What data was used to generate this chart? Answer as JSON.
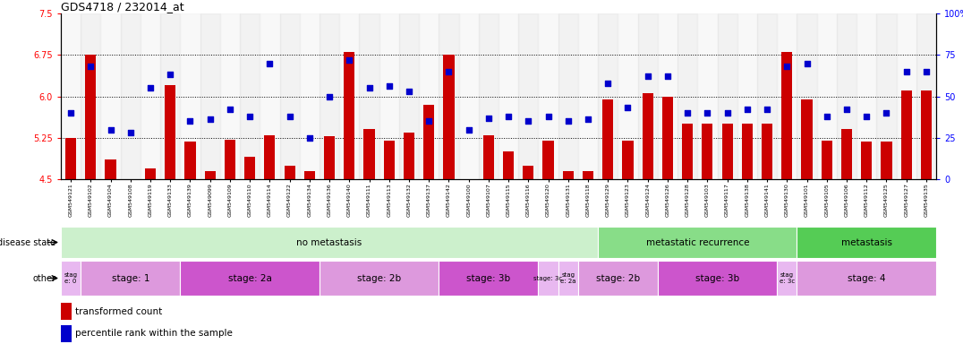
{
  "title": "GDS4718 / 232014_at",
  "samples": [
    "GSM549121",
    "GSM549102",
    "GSM549104",
    "GSM549108",
    "GSM549119",
    "GSM549133",
    "GSM549139",
    "GSM549099",
    "GSM549109",
    "GSM549110",
    "GSM549114",
    "GSM549122",
    "GSM549134",
    "GSM549136",
    "GSM549140",
    "GSM549111",
    "GSM549113",
    "GSM549132",
    "GSM549137",
    "GSM549142",
    "GSM549100",
    "GSM549107",
    "GSM549115",
    "GSM549116",
    "GSM549120",
    "GSM549131",
    "GSM549118",
    "GSM549129",
    "GSM549123",
    "GSM549124",
    "GSM549126",
    "GSM549128",
    "GSM549103",
    "GSM549117",
    "GSM549138",
    "GSM549141",
    "GSM549130",
    "GSM549101",
    "GSM549105",
    "GSM549106",
    "GSM549112",
    "GSM549125",
    "GSM549127",
    "GSM549135"
  ],
  "bar_values": [
    5.25,
    6.75,
    4.85,
    4.5,
    4.7,
    6.2,
    5.18,
    4.65,
    5.22,
    4.9,
    5.3,
    4.75,
    4.65,
    5.28,
    6.8,
    5.4,
    5.2,
    5.35,
    5.85,
    6.75,
    4.5,
    5.3,
    5.0,
    4.75,
    5.2,
    4.65,
    4.65,
    5.95,
    5.2,
    6.05,
    6.0,
    5.5,
    5.5,
    5.5,
    5.5,
    5.5,
    6.8,
    5.95,
    5.2,
    5.4,
    5.18,
    5.18,
    6.1,
    6.1
  ],
  "percentile_values": [
    40,
    68,
    30,
    28,
    55,
    63,
    35,
    36,
    42,
    38,
    70,
    38,
    25,
    50,
    72,
    55,
    56,
    53,
    35,
    65,
    30,
    37,
    38,
    35,
    38,
    35,
    36,
    58,
    43,
    62,
    62,
    40,
    40,
    40,
    42,
    42,
    68,
    70,
    38,
    42,
    38,
    40,
    65,
    65
  ],
  "ylim_left": [
    4.5,
    7.5
  ],
  "ylim_right": [
    0,
    100
  ],
  "yticks_left": [
    4.5,
    5.25,
    6.0,
    6.75,
    7.5
  ],
  "yticks_right": [
    0,
    25,
    50,
    75,
    100
  ],
  "hlines": [
    5.25,
    6.0,
    6.75
  ],
  "bar_color": "#cc0000",
  "dot_color": "#0000cc",
  "bar_bottom": 4.5,
  "ds_groups": [
    {
      "label": "no metastasis",
      "start": 0,
      "end": 27,
      "color": "#ccf0cc"
    },
    {
      "label": "metastatic recurrence",
      "start": 27,
      "end": 37,
      "color": "#88dd88"
    },
    {
      "label": "metastasis",
      "start": 37,
      "end": 44,
      "color": "#55cc55"
    }
  ],
  "other_groups": [
    {
      "label": "stag\ne: 0",
      "start": 0,
      "end": 1,
      "color": "#e8b8f0"
    },
    {
      "label": "stage: 1",
      "start": 1,
      "end": 6,
      "color": "#dd99dd"
    },
    {
      "label": "stage: 2a",
      "start": 6,
      "end": 13,
      "color": "#cc55cc"
    },
    {
      "label": "stage: 2b",
      "start": 13,
      "end": 19,
      "color": "#dd99dd"
    },
    {
      "label": "stage: 3b",
      "start": 19,
      "end": 24,
      "color": "#cc55cc"
    },
    {
      "label": "stage: 3c",
      "start": 24,
      "end": 25,
      "color": "#e8b8f0"
    },
    {
      "label": "stag\ne: 2a",
      "start": 25,
      "end": 26,
      "color": "#e8b8f0"
    },
    {
      "label": "stage: 2b",
      "start": 26,
      "end": 30,
      "color": "#dd99dd"
    },
    {
      "label": "stage: 3b",
      "start": 30,
      "end": 36,
      "color": "#cc55cc"
    },
    {
      "label": "stag\ne: 3c",
      "start": 36,
      "end": 37,
      "color": "#e8b8f0"
    },
    {
      "label": "stage: 4",
      "start": 37,
      "end": 44,
      "color": "#dd99dd"
    }
  ]
}
